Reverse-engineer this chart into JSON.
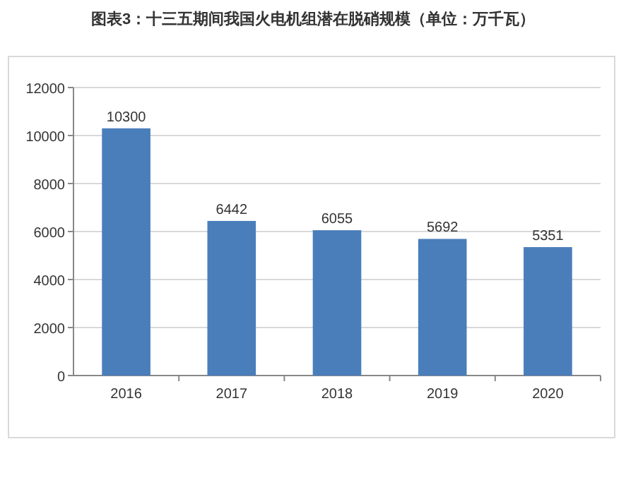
{
  "chart_data": {
    "type": "bar",
    "title": "图表3：十三五期间我国火电机组潜在脱硝规模（单位：万千瓦）",
    "categories": [
      "2016",
      "2017",
      "2018",
      "2019",
      "2020"
    ],
    "values": [
      10300,
      6442,
      6055,
      5692,
      5351
    ],
    "color": "#4a7ebb",
    "ylim": [
      0,
      12000
    ],
    "yticks": [
      0,
      2000,
      4000,
      6000,
      8000,
      10000,
      12000
    ],
    "grid": "y",
    "data_labels": true
  }
}
